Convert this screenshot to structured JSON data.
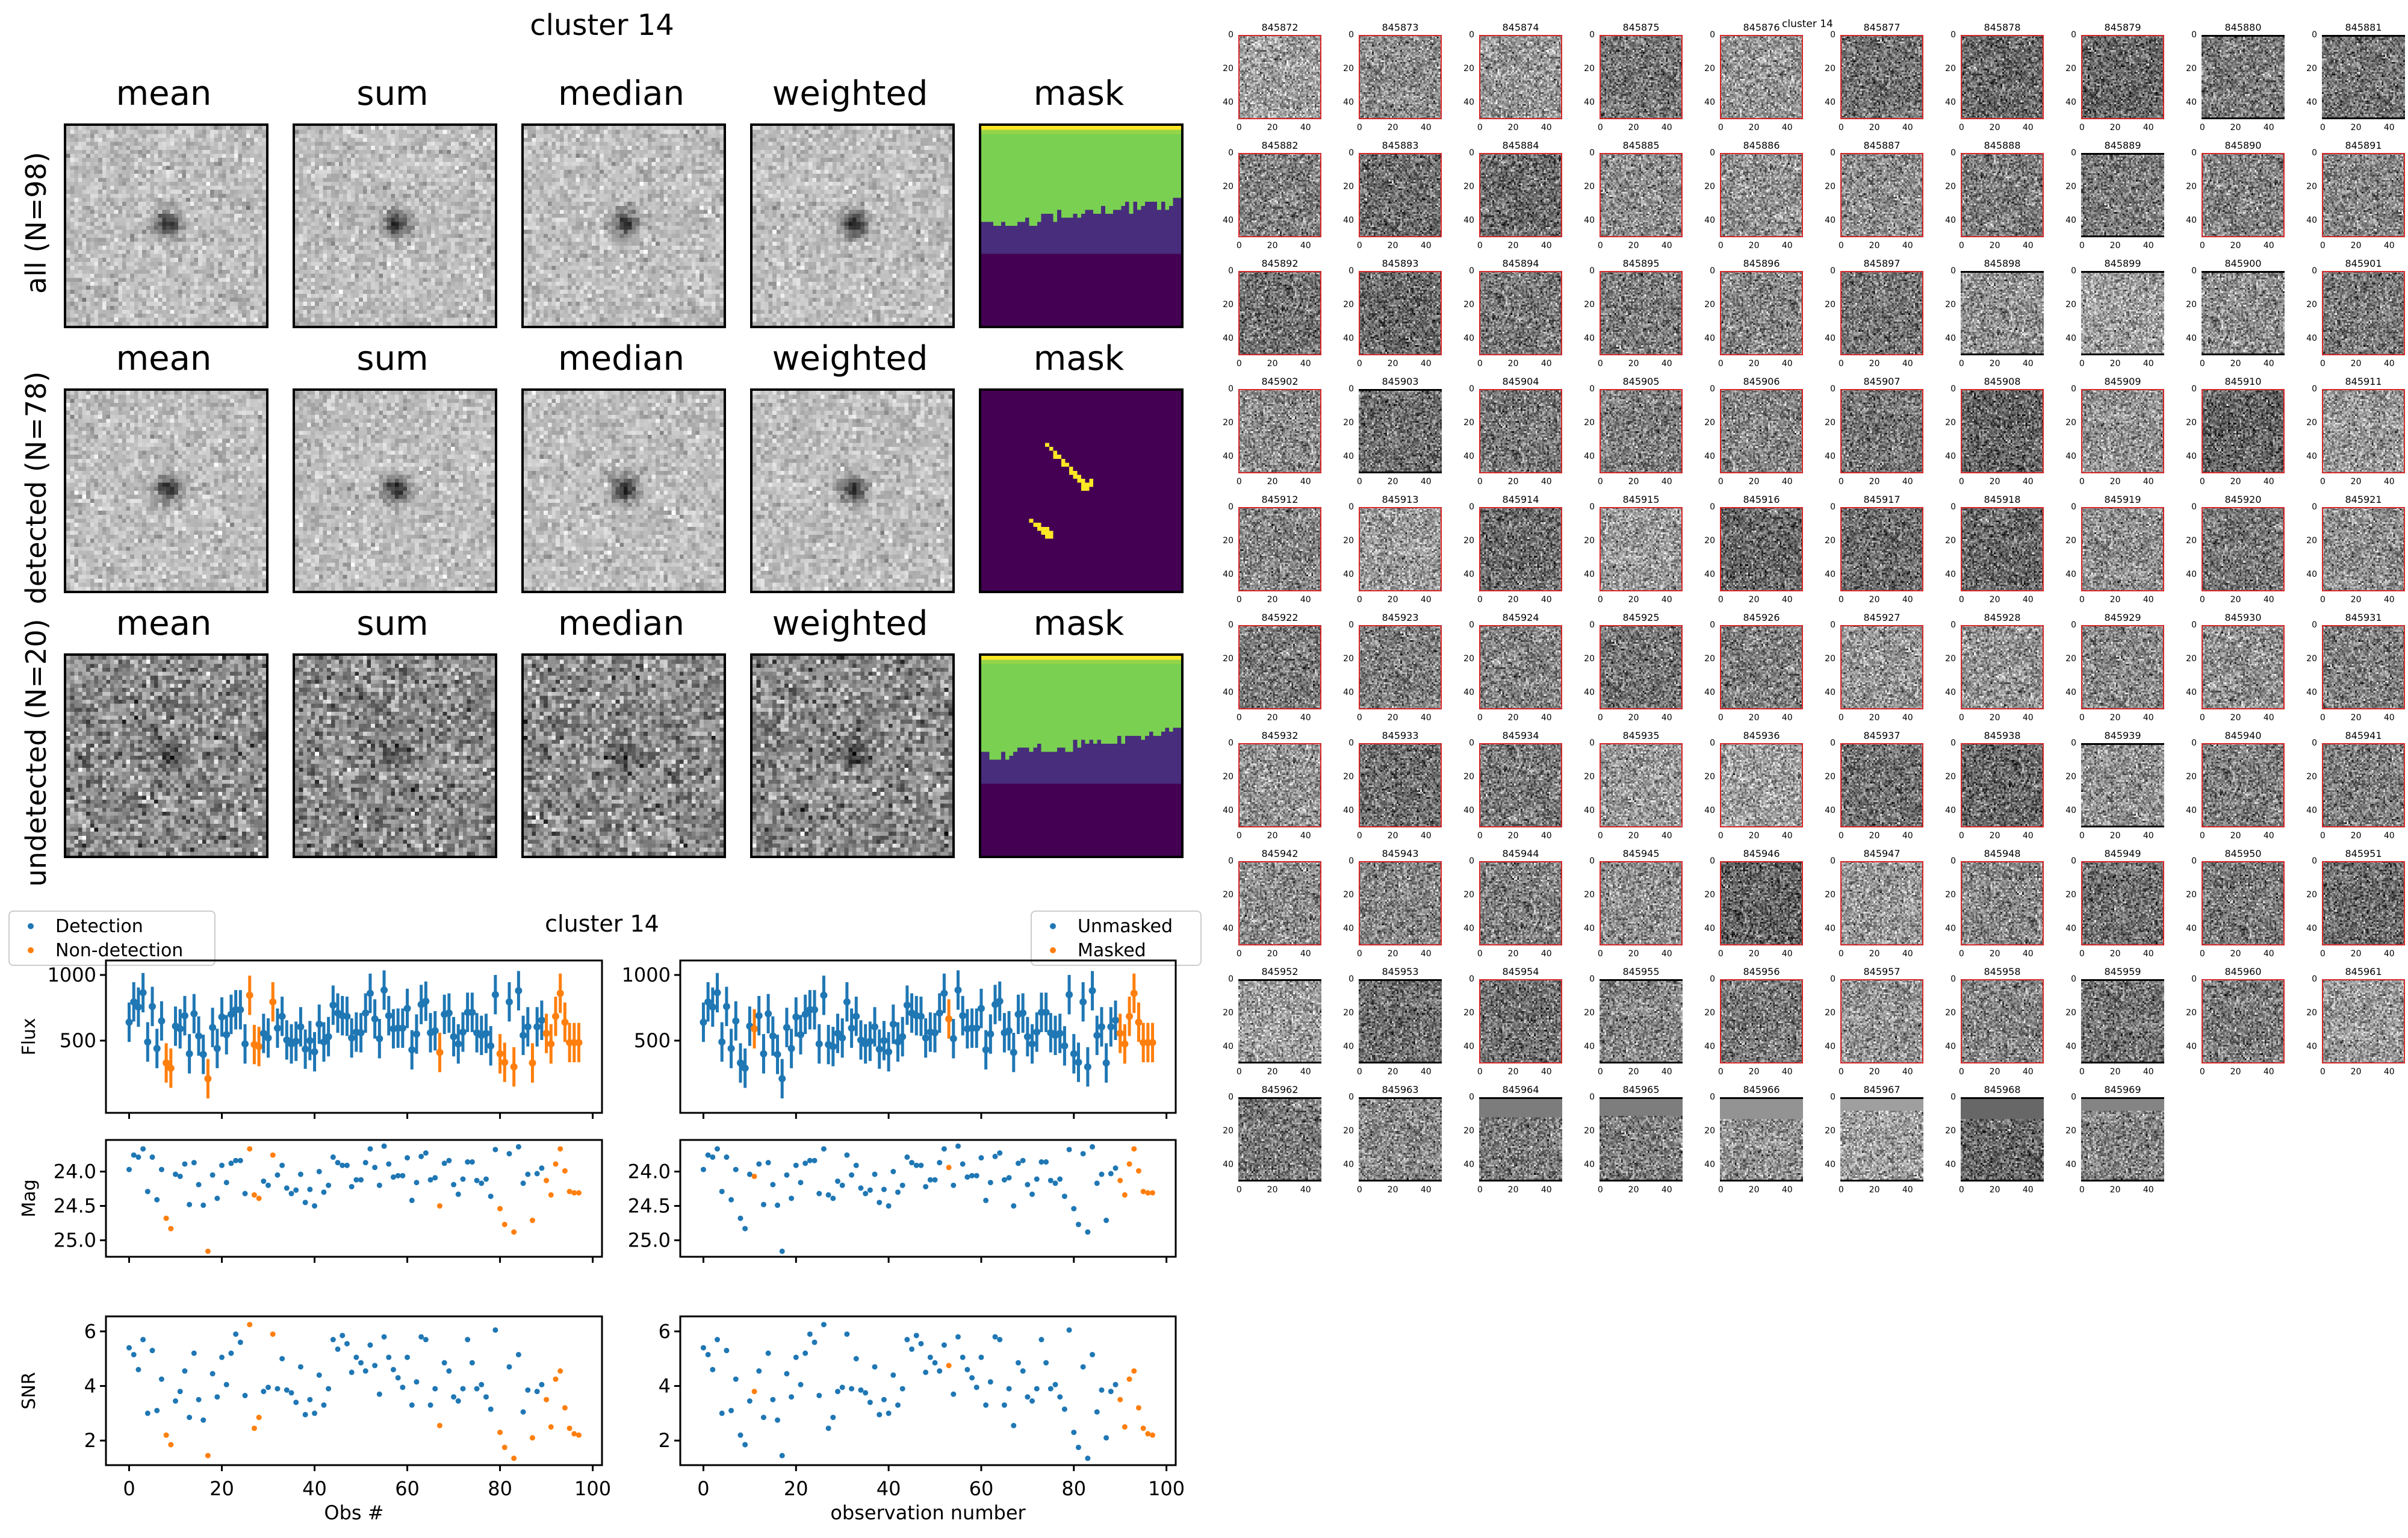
{
  "figure_left": {
    "title": "cluster 14",
    "column_titles": [
      "mean",
      "sum",
      "median",
      "weighted",
      "mask"
    ],
    "rows": [
      {
        "label": "all (N=98)",
        "n": 98,
        "mask_type": "histogram"
      },
      {
        "label": "detected (N=78)",
        "n": 78,
        "mask_type": "streak"
      },
      {
        "label": "undetected (N=20)",
        "n": 20,
        "mask_type": "histogram"
      }
    ],
    "mask_colors": {
      "dark": "#440154",
      "purple": "#472d7b",
      "green": "#7ad151",
      "yellow": "#fde725"
    }
  },
  "lightcurve_title": "cluster 14",
  "colors": {
    "blue": "#1f77b4",
    "orange": "#ff7f0e",
    "thumb_detected_border": "#d62728",
    "thumb_undetected_border": "#000000"
  },
  "chart_data": [
    {
      "name": "flux-vs-obs-detection",
      "type": "scatter",
      "xlabel": "",
      "ylabel": "Flux",
      "xlim": [
        -5,
        102
      ],
      "ylim": [
        -50,
        1110
      ],
      "yticks": [
        500,
        1000
      ],
      "xticks": [
        0,
        20,
        40,
        60,
        80,
        100
      ],
      "error_bar": 150,
      "legend": {
        "placement": "top-left-outside",
        "entries": [
          "Detection",
          "Non-detection"
        ]
      },
      "classification": "detection",
      "metric": "flux"
    },
    {
      "name": "mag-vs-obs-detection",
      "type": "scatter",
      "ylabel": "Mag",
      "ylim": [
        25.24,
        23.54
      ],
      "yticks": [
        24.0,
        24.5,
        25.0
      ],
      "xticks": [
        0,
        20,
        40,
        60,
        80,
        100
      ],
      "classification": "detection",
      "metric": "mag"
    },
    {
      "name": "snr-vs-obs-detection",
      "type": "scatter",
      "ylabel": "SNR",
      "xlabel": "Obs #",
      "ylim": [
        1.1,
        6.55
      ],
      "yticks": [
        2,
        4,
        6
      ],
      "xticks": [
        0,
        20,
        40,
        60,
        80,
        100
      ],
      "classification": "detection",
      "metric": "snr"
    },
    {
      "name": "flux-vs-obs-mask",
      "type": "scatter",
      "ylabel": "",
      "ylim": [
        -50,
        1110
      ],
      "yticks": [
        500,
        1000
      ],
      "xticks": [
        0,
        20,
        40,
        60,
        80,
        100
      ],
      "error_bar": 150,
      "legend": {
        "placement": "top-right-outside",
        "entries": [
          "Unmasked",
          "Masked"
        ]
      },
      "classification": "mask",
      "metric": "flux"
    },
    {
      "name": "mag-vs-obs-mask",
      "type": "scatter",
      "ylabel": "",
      "ylim": [
        25.24,
        23.54
      ],
      "yticks": [
        24.0,
        24.5,
        25.0
      ],
      "xticks": [
        0,
        20,
        40,
        60,
        80,
        100
      ],
      "classification": "mask",
      "metric": "mag"
    },
    {
      "name": "snr-vs-obs-mask",
      "type": "scatter",
      "ylabel": "",
      "xlabel": "observation number",
      "ylim": [
        1.1,
        6.55
      ],
      "yticks": [
        2,
        4,
        6
      ],
      "xticks": [
        0,
        20,
        40,
        60,
        80,
        100
      ],
      "classification": "mask",
      "metric": "snr"
    }
  ],
  "observations": {
    "obs": [
      0,
      1,
      2,
      3,
      4,
      5,
      6,
      7,
      8,
      9,
      10,
      11,
      12,
      13,
      14,
      15,
      16,
      17,
      18,
      19,
      20,
      21,
      22,
      23,
      24,
      25,
      26,
      27,
      28,
      29,
      30,
      31,
      32,
      33,
      34,
      35,
      36,
      37,
      38,
      39,
      40,
      41,
      42,
      43,
      44,
      45,
      46,
      47,
      48,
      49,
      50,
      51,
      52,
      53,
      54,
      55,
      56,
      57,
      58,
      59,
      60,
      61,
      62,
      63,
      64,
      65,
      66,
      67,
      68,
      69,
      70,
      71,
      72,
      73,
      74,
      75,
      76,
      77,
      78,
      79,
      80,
      81,
      82,
      83,
      84,
      85,
      86,
      87,
      88,
      89,
      90,
      91,
      92,
      93,
      94,
      95,
      96,
      97
    ],
    "flux": [
      640,
      795,
      755,
      865,
      490,
      760,
      440,
      650,
      330,
      290,
      610,
      590,
      690,
      400,
      705,
      535,
      395,
      210,
      600,
      440,
      680,
      545,
      700,
      735,
      735,
      475,
      845,
      470,
      455,
      555,
      520,
      795,
      595,
      685,
      505,
      475,
      495,
      605,
      435,
      500,
      415,
      625,
      490,
      530,
      770,
      710,
      690,
      685,
      520,
      565,
      560,
      710,
      860,
      665,
      515,
      885,
      690,
      590,
      595,
      595,
      745,
      430,
      550,
      775,
      800,
      560,
      575,
      410,
      700,
      710,
      530,
      475,
      565,
      715,
      715,
      560,
      540,
      555,
      460,
      850,
      400,
      335,
      795,
      300,
      880,
      540,
      605,
      330,
      605,
      655,
      555,
      475,
      685,
      860,
      640,
      485,
      485,
      485
    ],
    "mag": [
      23.97,
      23.76,
      23.79,
      23.67,
      24.29,
      23.79,
      24.41,
      23.97,
      24.68,
      24.83,
      24.04,
      24.07,
      23.89,
      24.48,
      23.87,
      24.19,
      24.49,
      25.16,
      24.05,
      24.39,
      23.91,
      24.16,
      23.88,
      23.84,
      23.84,
      24.32,
      23.67,
      24.34,
      24.39,
      24.14,
      24.2,
      23.76,
      24.05,
      23.91,
      24.24,
      24.32,
      24.27,
      24.04,
      24.45,
      24.26,
      24.5,
      24.0,
      24.3,
      24.2,
      23.79,
      23.87,
      23.91,
      23.91,
      24.22,
      24.12,
      24.12,
      23.87,
      23.67,
      23.94,
      24.2,
      23.63,
      23.89,
      24.08,
      24.06,
      24.06,
      23.8,
      24.42,
      24.16,
      23.78,
      23.73,
      24.12,
      24.09,
      24.5,
      23.88,
      23.84,
      24.19,
      24.33,
      24.11,
      23.86,
      23.86,
      24.13,
      24.17,
      24.11,
      24.36,
      23.68,
      24.54,
      24.77,
      23.74,
      24.88,
      23.64,
      24.17,
      24.04,
      24.71,
      24.03,
      23.95,
      24.13,
      24.34,
      23.89,
      23.67,
      23.99,
      24.29,
      24.31,
      24.31
    ],
    "snr": [
      5.4,
      5.15,
      4.6,
      5.7,
      3.0,
      5.3,
      3.1,
      4.25,
      2.2,
      1.85,
      3.45,
      3.8,
      4.55,
      2.85,
      5.2,
      3.5,
      2.75,
      1.45,
      4.45,
      3.6,
      5.05,
      4.05,
      5.2,
      5.9,
      5.6,
      3.65,
      6.25,
      2.45,
      2.85,
      3.8,
      3.95,
      5.9,
      3.9,
      5.0,
      3.85,
      3.75,
      3.4,
      4.7,
      2.95,
      3.5,
      3.0,
      4.4,
      3.3,
      3.9,
      5.7,
      5.35,
      5.85,
      5.55,
      4.5,
      5.05,
      4.85,
      4.55,
      5.5,
      4.75,
      3.7,
      5.8,
      5.05,
      4.6,
      4.3,
      3.95,
      5.05,
      3.3,
      4.15,
      5.8,
      5.7,
      3.3,
      3.9,
      2.55,
      4.85,
      4.55,
      3.6,
      3.45,
      3.9,
      5.7,
      4.85,
      3.9,
      4.05,
      3.6,
      3.15,
      6.05,
      2.3,
      1.75,
      4.7,
      1.35,
      5.15,
      3.05,
      3.85,
      2.1,
      3.8,
      4.05,
      3.5,
      2.5,
      4.25,
      4.55,
      3.2,
      2.45,
      2.25,
      2.2
    ],
    "non_detection_indices": [
      8,
      9,
      17,
      26,
      27,
      28,
      31,
      67,
      80,
      81,
      83,
      87,
      90,
      91,
      92,
      93,
      94,
      95,
      96,
      97
    ],
    "masked_indices": [
      11,
      53,
      90,
      91,
      92,
      93,
      94,
      95,
      96,
      97
    ]
  },
  "thumbnails": {
    "title": "cluster 14",
    "first_id": 845872,
    "count": 98,
    "columns": 10,
    "axis_ticks": [
      "0",
      "20",
      "40"
    ]
  }
}
